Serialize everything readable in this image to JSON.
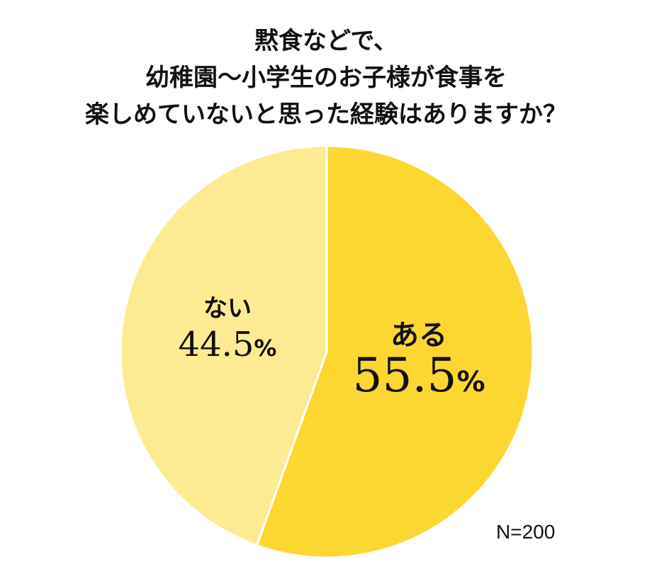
{
  "chart_data": {
    "type": "pie",
    "title": [
      "黙食などで、",
      "幼稚園～小学生のお子様が食事を",
      "楽しめていないと思った経験はありますか？"
    ],
    "slices": [
      {
        "label": "ある",
        "value": 55.5,
        "color": "#FDD731"
      },
      {
        "label": "ない",
        "value": 44.5,
        "color": "#FDEB93"
      }
    ],
    "unit": "%",
    "start": "12 o'clock, clockwise",
    "note": "N=200"
  }
}
